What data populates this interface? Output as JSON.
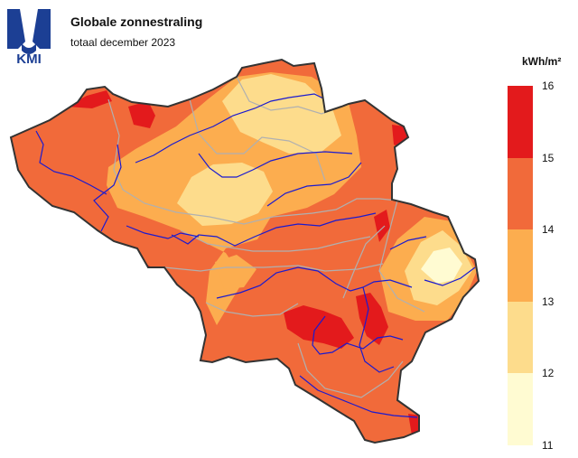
{
  "header": {
    "logo_text": "KMI",
    "title": "Globale zonnestraling",
    "subtitle": "totaal december 2023"
  },
  "legend": {
    "unit": "kWh/m²",
    "ticks": [
      "16",
      "15",
      "14",
      "13",
      "12",
      "11"
    ],
    "classes": [
      {
        "from": 15,
        "to": 16,
        "color": "#e31a1c"
      },
      {
        "from": 14,
        "to": 15,
        "color": "#f16a3a"
      },
      {
        "from": 13,
        "to": 14,
        "color": "#fcad4f"
      },
      {
        "from": 12,
        "to": 13,
        "color": "#fddc8c"
      },
      {
        "from": 11,
        "to": 12,
        "color": "#fffbd2"
      }
    ]
  },
  "map": {
    "country_outline_color": "#333333",
    "province_border_color": "#b0b0b0",
    "river_color": "#1a1ad0"
  }
}
